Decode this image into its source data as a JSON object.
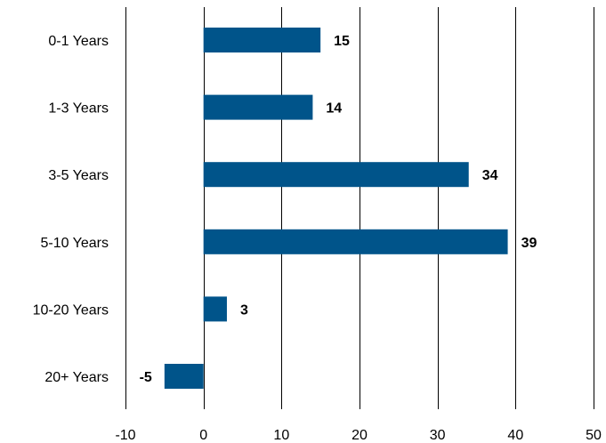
{
  "chart_data": {
    "type": "bar",
    "orientation": "horizontal",
    "categories": [
      "0-1 Years",
      "1-3 Years",
      "3-5 Years",
      "5-10 Years",
      "10-20 Years",
      "20+ Years"
    ],
    "values": [
      15,
      14,
      34,
      39,
      3,
      -5
    ],
    "data_labels": [
      "15",
      "14",
      "34",
      "39",
      "3",
      "-5"
    ],
    "xlim": [
      -10,
      50
    ],
    "x_ticks": [
      -10,
      0,
      10,
      20,
      30,
      40,
      50
    ],
    "x_tick_labels": [
      "-10",
      "0",
      "10",
      "20",
      "30",
      "40",
      "50"
    ],
    "grid": "vertical",
    "bar_color": "#00548a",
    "title": "",
    "xlabel": "",
    "ylabel": ""
  }
}
